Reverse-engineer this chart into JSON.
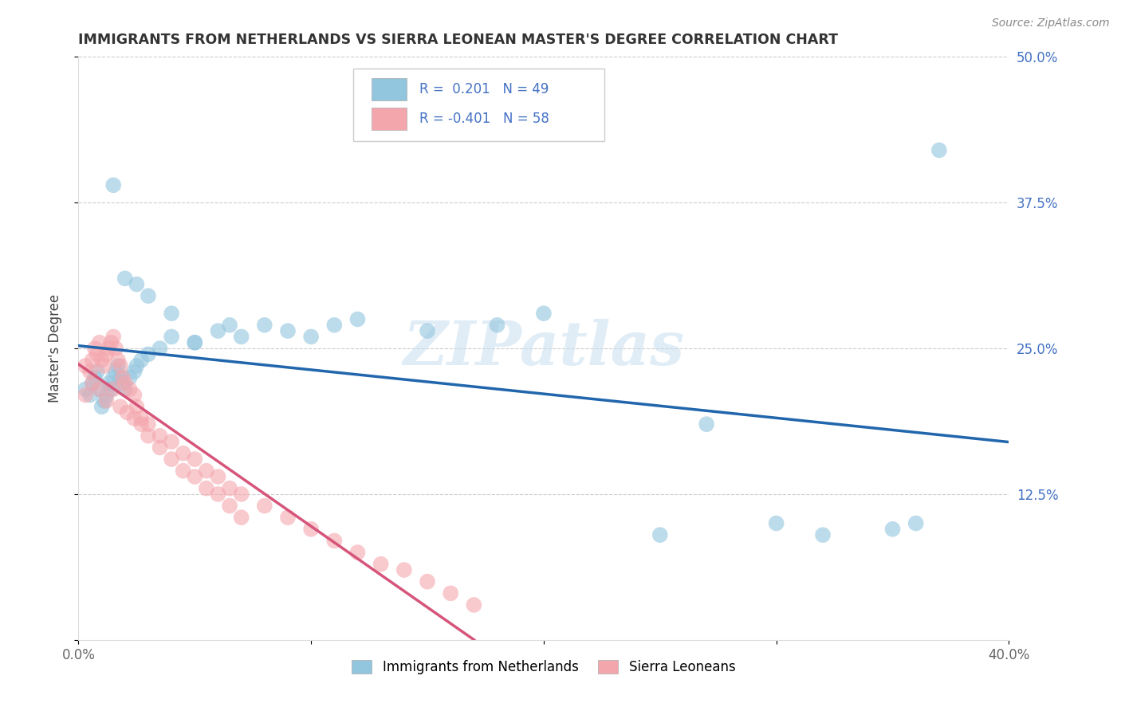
{
  "title": "IMMIGRANTS FROM NETHERLANDS VS SIERRA LEONEAN MASTER'S DEGREE CORRELATION CHART",
  "source": "Source: ZipAtlas.com",
  "ylabel": "Master's Degree",
  "xlim": [
    0.0,
    0.4
  ],
  "ylim": [
    0.0,
    0.5
  ],
  "blue_color": "#92c5de",
  "pink_color": "#f4a6ad",
  "blue_line_color": "#2166ac",
  "pink_line_color": "#d6557a",
  "watermark": "ZIPatlas",
  "legend_blue_label": "Immigrants from Netherlands",
  "legend_pink_label": "Sierra Leoneans",
  "blue_scatter_x": [
    0.003,
    0.005,
    0.006,
    0.007,
    0.008,
    0.009,
    0.01,
    0.011,
    0.012,
    0.013,
    0.014,
    0.015,
    0.016,
    0.017,
    0.018,
    0.019,
    0.02,
    0.022,
    0.024,
    0.025,
    0.027,
    0.03,
    0.035,
    0.04,
    0.05,
    0.06,
    0.065,
    0.07,
    0.08,
    0.09,
    0.1,
    0.11,
    0.12,
    0.15,
    0.18,
    0.2,
    0.25,
    0.27,
    0.3,
    0.32,
    0.35,
    0.36,
    0.015,
    0.02,
    0.025,
    0.03,
    0.04,
    0.05,
    0.37
  ],
  "blue_scatter_y": [
    0.215,
    0.21,
    0.22,
    0.225,
    0.23,
    0.215,
    0.2,
    0.205,
    0.21,
    0.22,
    0.215,
    0.225,
    0.23,
    0.235,
    0.225,
    0.22,
    0.215,
    0.225,
    0.23,
    0.235,
    0.24,
    0.245,
    0.25,
    0.26,
    0.255,
    0.265,
    0.27,
    0.26,
    0.27,
    0.265,
    0.26,
    0.27,
    0.275,
    0.265,
    0.27,
    0.28,
    0.09,
    0.185,
    0.1,
    0.09,
    0.095,
    0.1,
    0.39,
    0.31,
    0.305,
    0.295,
    0.28,
    0.255,
    0.42
  ],
  "pink_scatter_x": [
    0.003,
    0.005,
    0.006,
    0.007,
    0.008,
    0.009,
    0.01,
    0.011,
    0.012,
    0.013,
    0.014,
    0.015,
    0.016,
    0.017,
    0.018,
    0.019,
    0.02,
    0.022,
    0.024,
    0.025,
    0.027,
    0.03,
    0.035,
    0.04,
    0.045,
    0.05,
    0.055,
    0.06,
    0.065,
    0.07,
    0.08,
    0.09,
    0.1,
    0.11,
    0.12,
    0.13,
    0.14,
    0.15,
    0.16,
    0.17,
    0.003,
    0.006,
    0.009,
    0.012,
    0.015,
    0.018,
    0.021,
    0.024,
    0.027,
    0.03,
    0.035,
    0.04,
    0.045,
    0.05,
    0.055,
    0.06,
    0.065,
    0.07
  ],
  "pink_scatter_y": [
    0.235,
    0.23,
    0.24,
    0.25,
    0.245,
    0.255,
    0.24,
    0.235,
    0.245,
    0.25,
    0.255,
    0.26,
    0.25,
    0.24,
    0.235,
    0.225,
    0.22,
    0.215,
    0.21,
    0.2,
    0.19,
    0.185,
    0.175,
    0.17,
    0.16,
    0.155,
    0.145,
    0.14,
    0.13,
    0.125,
    0.115,
    0.105,
    0.095,
    0.085,
    0.075,
    0.065,
    0.06,
    0.05,
    0.04,
    0.03,
    0.21,
    0.22,
    0.215,
    0.205,
    0.215,
    0.2,
    0.195,
    0.19,
    0.185,
    0.175,
    0.165,
    0.155,
    0.145,
    0.14,
    0.13,
    0.125,
    0.115,
    0.105
  ]
}
